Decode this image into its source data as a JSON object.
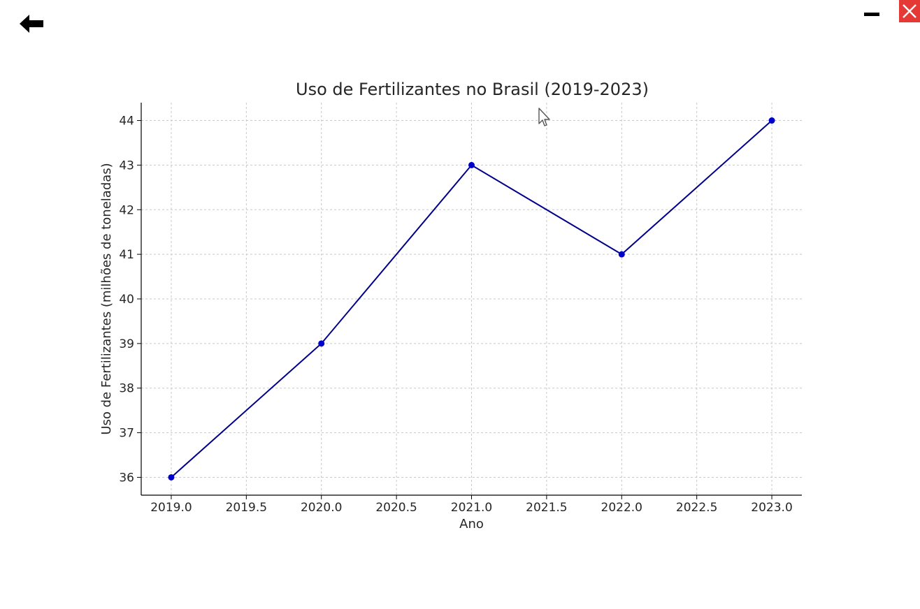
{
  "viewer": {
    "back_icon": "arrow-left-icon",
    "minimize_icon": "minus-icon",
    "close_icon": "close-icon",
    "close_color": "#e53935"
  },
  "chart_data": {
    "type": "line",
    "title": "Uso de Fertilizantes no Brasil (2019-2023)",
    "xlabel": "Ano",
    "ylabel": "Uso de Fertilizantes (milhões de toneladas)",
    "x": [
      2019,
      2020,
      2021,
      2022,
      2023
    ],
    "series": [
      {
        "values": [
          36,
          39,
          43,
          41,
          44
        ],
        "color": "#00008b",
        "marker": "circle",
        "marker_color": "#0000cd"
      }
    ],
    "xticks": [
      "2019.0",
      "2019.5",
      "2020.0",
      "2020.5",
      "2021.0",
      "2021.5",
      "2022.0",
      "2022.5",
      "2023.0"
    ],
    "yticks": [
      "36",
      "37",
      "38",
      "39",
      "40",
      "41",
      "42",
      "43",
      "44"
    ],
    "xlim": [
      2018.8,
      2023.2
    ],
    "ylim": [
      35.6,
      44.4
    ],
    "grid": true,
    "grid_style": "dashed",
    "grid_color": "#c8c8c8"
  }
}
